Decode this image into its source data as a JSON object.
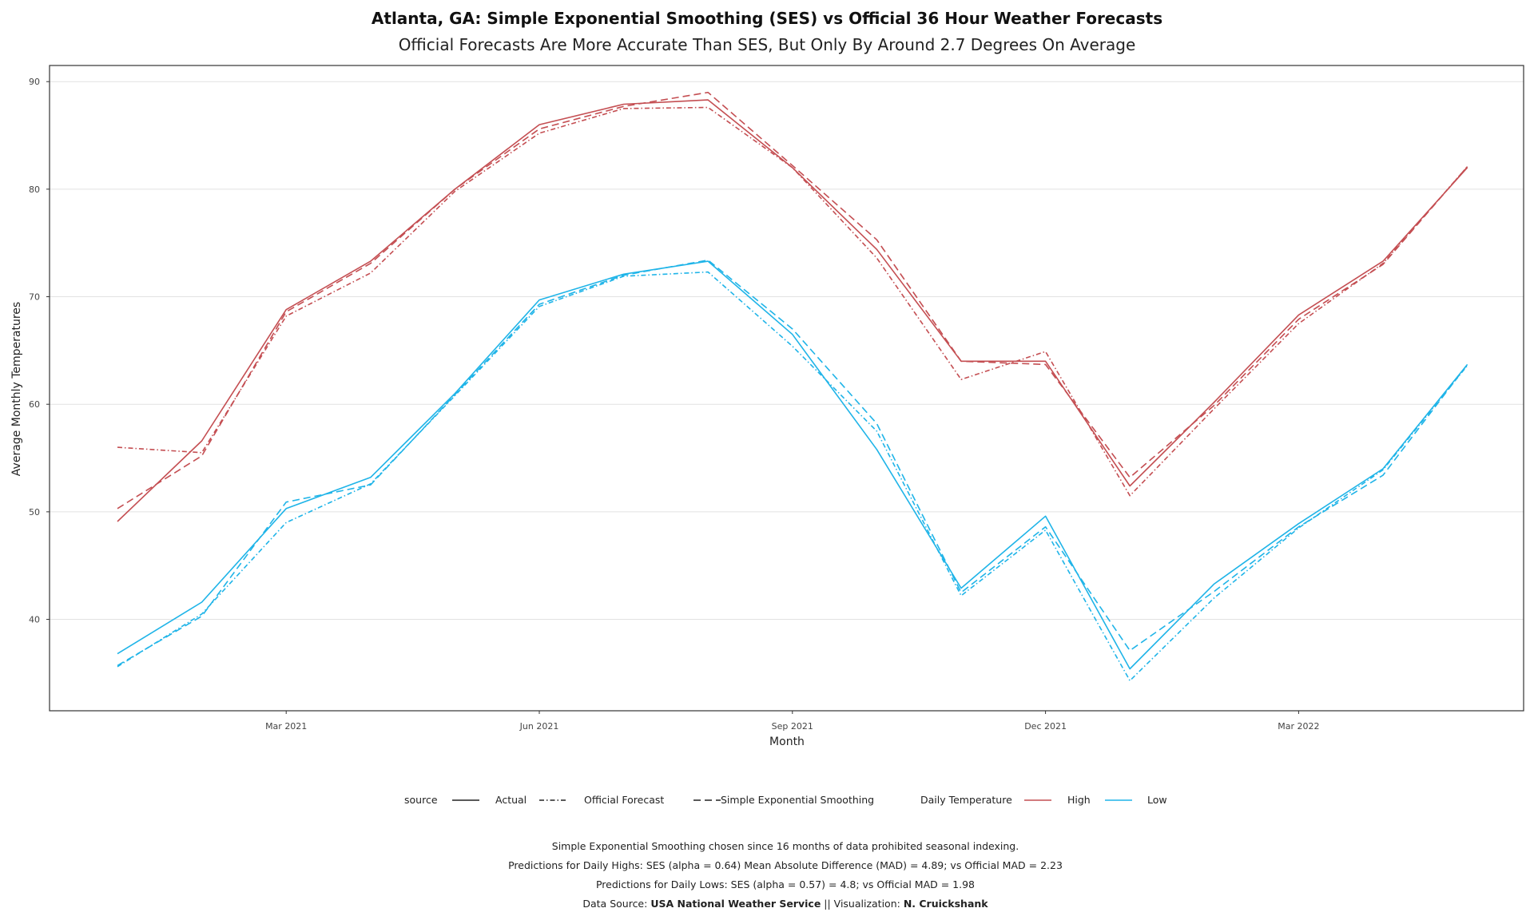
{
  "chart_data": {
    "type": "line",
    "title": "Atlanta, GA: Simple Exponential Smoothing (SES) vs Official 36 Hour Weather Forecasts",
    "subtitle": "Official Forecasts Are More Accurate Than SES, But Only By Around 2.7 Degrees On Average",
    "xlabel": "Month",
    "ylabel": "Average Monthly Temperatures",
    "ylim": [
      31.5,
      91.5
    ],
    "yticks": [
      40,
      50,
      60,
      70,
      80,
      90
    ],
    "x": [
      "2021-01",
      "2021-02",
      "2021-03",
      "2021-04",
      "2021-05",
      "2021-06",
      "2021-07",
      "2021-08",
      "2021-09",
      "2021-10",
      "2021-11",
      "2021-12",
      "2022-01",
      "2022-02",
      "2022-03",
      "2022-04",
      "2022-05"
    ],
    "xticks": [
      {
        "x": "2021-03",
        "label": "Mar 2021"
      },
      {
        "x": "2021-06",
        "label": "Jun 2021"
      },
      {
        "x": "2021-09",
        "label": "Sep 2021"
      },
      {
        "x": "2021-12",
        "label": "Dec 2021"
      },
      {
        "x": "2022-03",
        "label": "Mar 2022"
      }
    ],
    "grid": "horizontal",
    "legend_position": "bottom",
    "series": [
      {
        "temp": "High",
        "source": "Actual",
        "color": "#c44e52",
        "dash": "solid",
        "values": [
          49.1,
          56.6,
          68.8,
          73.3,
          80.0,
          86.0,
          87.9,
          88.3,
          82.0,
          74.4,
          64.0,
          64.0,
          52.4,
          60.2,
          68.3,
          73.3,
          82.0
        ]
      },
      {
        "temp": "High",
        "source": "Official Forecast",
        "color": "#c44e52",
        "dash": "dashdot",
        "values": [
          56.0,
          55.5,
          68.2,
          72.2,
          79.8,
          85.2,
          87.5,
          87.6,
          82.0,
          73.6,
          62.3,
          64.9,
          51.5,
          59.6,
          67.5,
          73.1,
          82.1
        ]
      },
      {
        "temp": "High",
        "source": "Simple Exponential Smoothing",
        "color": "#c44e52",
        "dash": "dashed",
        "values": [
          50.3,
          55.2,
          68.6,
          73.1,
          80.0,
          85.6,
          87.7,
          89.0,
          82.2,
          75.3,
          64.0,
          63.7,
          53.2,
          59.9,
          67.9,
          73.0,
          82.1
        ]
      },
      {
        "temp": "Low",
        "source": "Actual",
        "color": "#1fb4e8",
        "dash": "solid",
        "values": [
          36.8,
          41.6,
          50.3,
          53.2,
          61.0,
          69.7,
          72.1,
          73.3,
          66.5,
          55.8,
          42.9,
          49.6,
          35.4,
          43.3,
          48.9,
          54.0,
          63.7
        ]
      },
      {
        "temp": "Low",
        "source": "Official Forecast",
        "color": "#1fb4e8",
        "dash": "dashdot",
        "values": [
          35.6,
          40.5,
          49.0,
          52.6,
          60.8,
          69.1,
          71.9,
          72.3,
          65.4,
          57.5,
          42.2,
          48.3,
          34.3,
          42.0,
          48.5,
          53.9,
          63.6
        ]
      },
      {
        "temp": "Low",
        "source": "Simple Exponential Smoothing",
        "color": "#1fb4e8",
        "dash": "dashed",
        "values": [
          35.7,
          40.3,
          50.9,
          52.5,
          60.9,
          69.3,
          72.0,
          73.4,
          67.0,
          58.2,
          42.5,
          48.6,
          37.1,
          42.6,
          48.6,
          53.4,
          63.7
        ]
      }
    ],
    "legend": {
      "source_title": "source",
      "source_items": [
        "Actual",
        "Official Forecast",
        "Simple Exponential Smoothing"
      ],
      "temp_title": "Daily Temperature",
      "temp_items": [
        {
          "label": "High",
          "color": "#c44e52"
        },
        {
          "label": "Low",
          "color": "#1fb4e8"
        }
      ]
    },
    "caption": {
      "line1": "Simple Exponential Smoothing chosen since 16 months of data prohibited seasonal indexing.",
      "line2": "Predictions for Daily Highs: SES (alpha = 0.64) Mean Absolute Difference (MAD) = 4.89; vs Official MAD = 2.23",
      "line3": "Predictions for Daily Lows: SES (alpha = 0.57) = 4.8; vs Official MAD = 1.98",
      "line4_prefix": "Data Source: ",
      "line4_source": "USA National Weather Service",
      "line4_mid": " || Visualization: ",
      "line4_author": "N. Cruickshank"
    }
  }
}
